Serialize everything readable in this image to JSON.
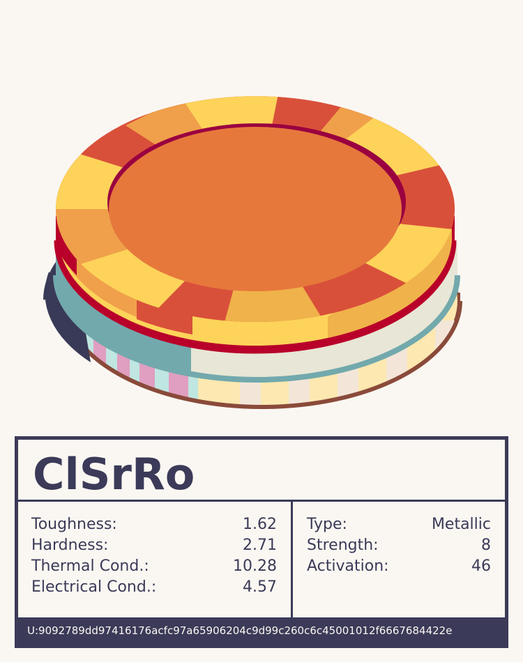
{
  "material": {
    "name": "ClSrRo",
    "uid": "U:9092789dd97416176acfc97a65906204c9d99c260c6c45001012f6667684422e"
  },
  "properties_left": [
    {
      "label": "Toughness:",
      "value": "1.62"
    },
    {
      "label": "Hardness:",
      "value": "2.71"
    },
    {
      "label": "Thermal Cond.:",
      "value": "10.28"
    },
    {
      "label": "Electrical Cond.:",
      "value": "4.57"
    }
  ],
  "properties_right": [
    {
      "label": "Type:",
      "value": "Metallic"
    },
    {
      "label": "Strength:",
      "value": "8"
    },
    {
      "label": "Activation:",
      "value": "46"
    }
  ],
  "colors": {
    "ink": "#3b3a58",
    "paper": "#faf7f2",
    "top_face": "#e6783c",
    "rim_orange": "#f0a04a",
    "rim_yellow": "#fdd35a",
    "rim_red": "#d9503a",
    "crimson": "#b8002a",
    "teal": "#72a9ad",
    "cream": "#e8e6d6",
    "pink": "#e09ec0",
    "mint": "#bfe6e0",
    "pale_yellow": "#fce8b0",
    "brown": "#8a4a3a",
    "shadow": "#393a57"
  }
}
